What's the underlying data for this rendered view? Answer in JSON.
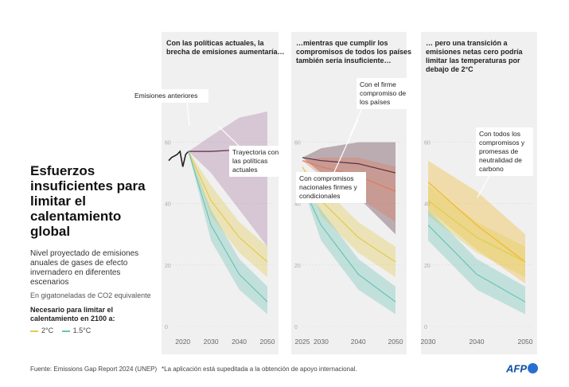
{
  "header": {
    "title": "Esfuerzos insuficientes para limitar el calentamiento global",
    "subtitle": "Nivel proyectado de emisiones anuales de gases de efecto invernadero en diferentes escenarios",
    "units": "En gigatoneladas de CO2 equivalente",
    "legend_title": "Necesario para limitar el calentamiento en 2100 a:",
    "legend": [
      {
        "label": "2°C",
        "color": "#e2cb4e"
      },
      {
        "label": "1.5°C",
        "color": "#6cc4b4"
      }
    ]
  },
  "footer": {
    "source": "Fuente: Emissions Gap Report 2024 (UNEP)",
    "note": "*La aplicación está supeditada a la obtención de apoyo internacional.",
    "logo": "AFP"
  },
  "colors": {
    "two_deg": "#e2cb4e",
    "one_five_deg": "#6cc4b4",
    "current_policy": "#a87aa0",
    "firm": "#5a2d3e",
    "conditional": "#e07a5a",
    "netzero": "#f2b72a"
  },
  "chart_data": [
    {
      "type": "area",
      "title": "Con las políticas actuales, la brecha de emisiones aumentaría…",
      "x_ticks": [
        2020,
        2030,
        2040,
        2050
      ],
      "y_ticks": [
        0,
        20,
        40,
        60
      ],
      "xlim": [
        2015,
        2050
      ],
      "ylim": [
        0,
        70
      ],
      "series": [
        {
          "name": "Emisiones anteriores",
          "x": [
            2015,
            2016,
            2017,
            2018,
            2019,
            2020,
            2021,
            2022
          ],
          "values": [
            54,
            55,
            55.5,
            56,
            57,
            52,
            56,
            57
          ]
        },
        {
          "name": "Trayectoria con las políticas actuales",
          "x": [
            2022,
            2030,
            2040,
            2050
          ],
          "values": [
            57,
            57,
            57.5,
            57
          ],
          "low": [
            57,
            50,
            38,
            26
          ],
          "high": [
            57,
            62,
            68,
            70
          ]
        },
        {
          "name": "2°C",
          "x": [
            2022,
            2030,
            2040,
            2050
          ],
          "values": [
            57,
            41,
            29,
            21
          ],
          "low": [
            57,
            36,
            24,
            16
          ],
          "high": [
            57,
            46,
            34,
            26
          ]
        },
        {
          "name": "1.5°C",
          "x": [
            2022,
            2030,
            2040,
            2050
          ],
          "values": [
            57,
            33,
            17,
            8
          ],
          "low": [
            57,
            28,
            12,
            4
          ],
          "high": [
            57,
            38,
            22,
            13
          ]
        }
      ],
      "annotations": [
        {
          "text": "Emisiones anteriores"
        },
        {
          "text": "Trayectoria con las políticas actuales"
        }
      ]
    },
    {
      "type": "area",
      "title": "…mientras que cumplir los compromisos de todos los países también sería insuficiente…",
      "x_ticks": [
        2025,
        2030,
        2040,
        2050
      ],
      "y_ticks": [
        0,
        20,
        40,
        60
      ],
      "xlim": [
        2025,
        2050
      ],
      "ylim": [
        0,
        70
      ],
      "series": [
        {
          "name": "Con el firme compromiso de los países",
          "x": [
            2025,
            2030,
            2040,
            2050
          ],
          "values": [
            55,
            54,
            53,
            50
          ],
          "low": [
            55,
            50,
            42,
            30
          ],
          "high": [
            55,
            58,
            60,
            60
          ]
        },
        {
          "name": "Con compromisos nacionales firmes y condicionales",
          "x": [
            2025,
            2030,
            2040,
            2050
          ],
          "values": [
            54,
            52,
            49,
            44
          ],
          "low": [
            54,
            49,
            42,
            34
          ],
          "high": [
            54,
            55,
            55,
            52
          ]
        },
        {
          "name": "2°C",
          "x": [
            2025,
            2030,
            2040,
            2050
          ],
          "values": [
            52,
            41,
            29,
            21
          ],
          "low": [
            52,
            36,
            24,
            16
          ],
          "high": [
            52,
            46,
            34,
            26
          ]
        },
        {
          "name": "1.5°C",
          "x": [
            2025,
            2030,
            2040,
            2050
          ],
          "values": [
            46,
            33,
            17,
            8
          ],
          "low": [
            46,
            28,
            12,
            4
          ],
          "high": [
            46,
            38,
            22,
            13
          ]
        }
      ],
      "annotations": [
        {
          "text": "Con el firme compromiso de los países"
        },
        {
          "text": "Con compromisos nacionales firmes y condicionales"
        }
      ]
    },
    {
      "type": "area",
      "title": "… pero una transición a emisiones netas cero podría limitar las temperaturas por debajo de 2°C",
      "x_ticks": [
        2030,
        2040,
        2050
      ],
      "y_ticks": [
        0,
        20,
        40,
        60
      ],
      "xlim": [
        2030,
        2050
      ],
      "ylim": [
        0,
        70
      ],
      "series": [
        {
          "name": "Con todos los compromisos y promesas de neutralidad de carbono",
          "x": [
            2030,
            2040,
            2050
          ],
          "values": [
            47,
            33,
            21
          ],
          "low": [
            38,
            25,
            14
          ],
          "high": [
            54,
            44,
            30
          ]
        },
        {
          "name": "2°C",
          "x": [
            2030,
            2040,
            2050
          ],
          "values": [
            41,
            29,
            21
          ],
          "low": [
            36,
            24,
            16
          ],
          "high": [
            46,
            34,
            26
          ]
        },
        {
          "name": "1.5°C",
          "x": [
            2030,
            2040,
            2050
          ],
          "values": [
            33,
            17,
            8
          ],
          "low": [
            28,
            12,
            4
          ],
          "high": [
            38,
            22,
            13
          ]
        }
      ],
      "annotations": [
        {
          "text": "Con todos los compromisos y promesas de neutralidad de carbono"
        }
      ]
    }
  ]
}
